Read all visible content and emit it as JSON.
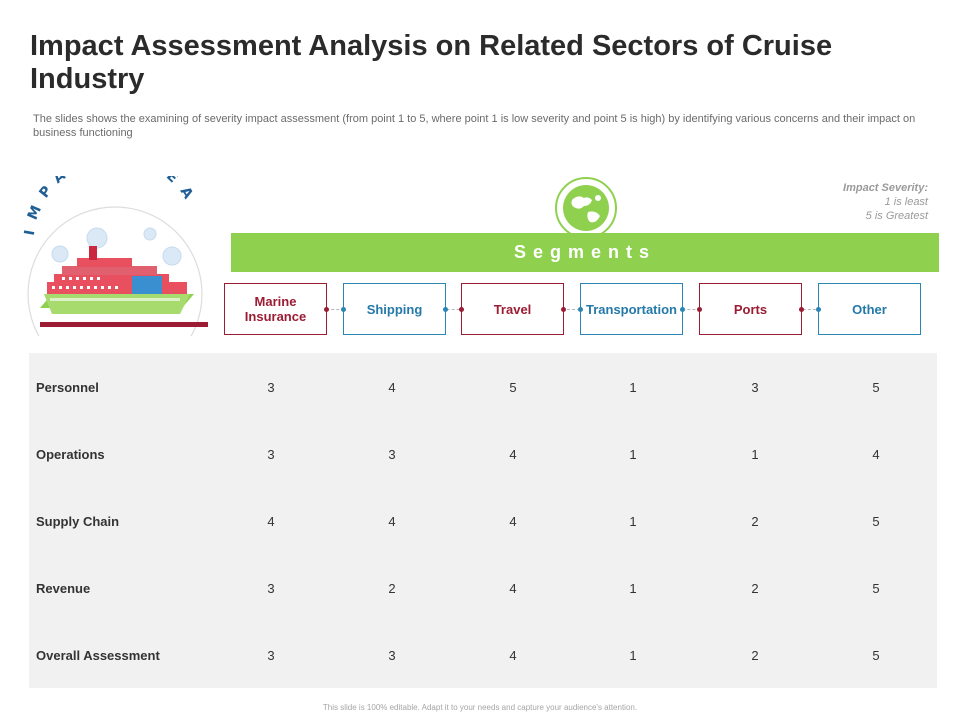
{
  "slide": {
    "title": "Impact Assessment Analysis on Related Sectors of Cruise Industry",
    "subtitle": "The slides shows the examining of severity impact assessment (from point 1 to 5, where point 1 is low severity and point 5 is high) by identifying various concerns and their impact on business functioning",
    "footer": "This slide is 100% editable. Adapt it to your needs and capture your audience's attention."
  },
  "impact_area": {
    "label": "IMPACT AREA",
    "icon": "cruise-ship-icon"
  },
  "legend": {
    "title": "Impact Severity:",
    "line1": "1 is least",
    "line2": "5 is Greatest"
  },
  "segments": {
    "icon": "globe-icon",
    "label": "Segments",
    "items": [
      {
        "label": "Marine Insurance",
        "color": "#9b1c33"
      },
      {
        "label": "Shipping",
        "color": "#2b86b3"
      },
      {
        "label": "Travel",
        "color": "#9b1c33"
      },
      {
        "label": "Transportation",
        "color": "#2b86b3"
      },
      {
        "label": "Ports",
        "color": "#9b1c33"
      },
      {
        "label": "Other",
        "color": "#2b86b3"
      }
    ]
  },
  "table": {
    "rows": [
      {
        "label": "Personnel",
        "values": [
          "3",
          "4",
          "5",
          "1",
          "3",
          "5"
        ]
      },
      {
        "label": "Operations",
        "values": [
          "3",
          "3",
          "4",
          "1",
          "1",
          "4"
        ]
      },
      {
        "label": "Supply Chain",
        "values": [
          "4",
          "4",
          "4",
          "1",
          "2",
          "5"
        ]
      },
      {
        "label": "Revenue",
        "values": [
          "3",
          "2",
          "4",
          "1",
          "2",
          "5"
        ]
      },
      {
        "label": "Overall Assessment",
        "values": [
          "3",
          "3",
          "4",
          "1",
          "2",
          "5"
        ]
      }
    ]
  },
  "colors": {
    "accent_green": "#8fd14f",
    "accent_red": "#9b1c33",
    "accent_blue": "#2b86b3",
    "table_bg": "#f1f1f1"
  }
}
